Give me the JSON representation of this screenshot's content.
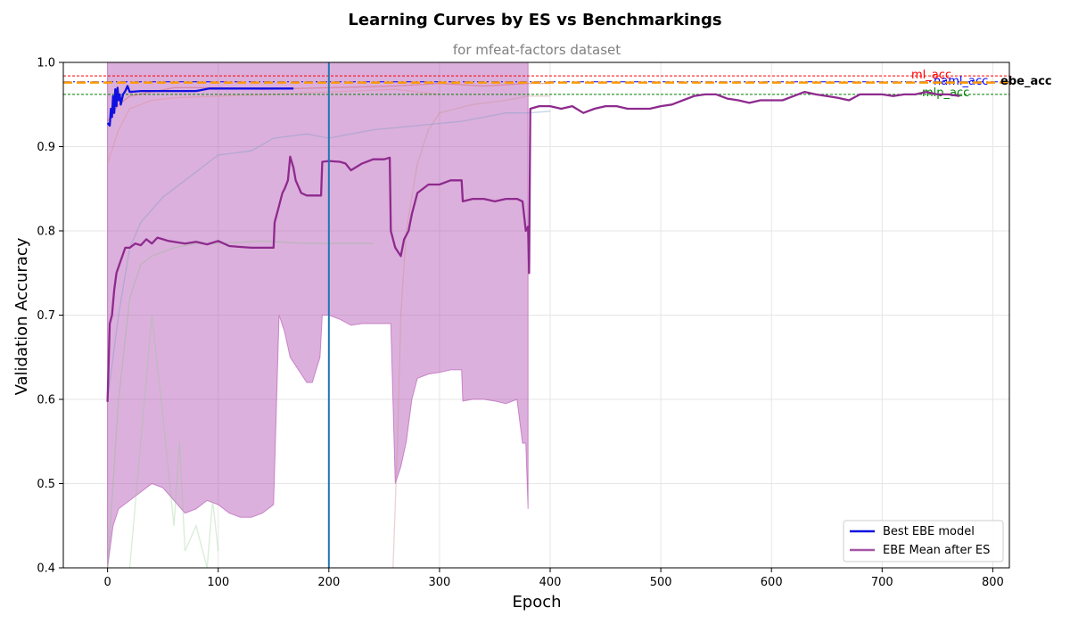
{
  "chart_data": {
    "type": "line",
    "title": "Learning Curves by ES vs Benchmarkings",
    "subtitle": "for mfeat-factors dataset",
    "xlabel": "Epoch",
    "ylabel": "Validation Accuracy",
    "xlim": [
      -40,
      815
    ],
    "ylim": [
      0.4,
      1.0
    ],
    "xticks": [
      0,
      100,
      200,
      300,
      400,
      500,
      600,
      700,
      800
    ],
    "yticks": [
      0.4,
      0.5,
      0.6,
      0.7,
      0.8,
      0.9,
      1.0
    ],
    "grid": true,
    "legend_position": "lower-right",
    "es_marker_epoch": 200,
    "es_marker_color": "#1f77b4",
    "reference_lines": [
      {
        "name": "ml_acc",
        "y": 0.984,
        "color": "#ff0000",
        "style": "dotted",
        "bold": false
      },
      {
        "name": "naml_acc",
        "y": 0.977,
        "color": "#0000ff",
        "style": "dashdot",
        "bold": false
      },
      {
        "name": "ebe_acc",
        "y": 0.976,
        "color": "#ff9900",
        "style": "dashed",
        "bold": true
      },
      {
        "name": "mlp_acc",
        "y": 0.962,
        "color": "#008000",
        "style": "dotted",
        "bold": false
      }
    ],
    "series": [
      {
        "name": "Best EBE model",
        "color": "#1010e0",
        "points": [
          [
            0,
            0.928
          ],
          [
            2,
            0.925
          ],
          [
            3,
            0.945
          ],
          [
            4,
            0.935
          ],
          [
            5,
            0.96
          ],
          [
            6,
            0.94
          ],
          [
            7,
            0.968
          ],
          [
            8,
            0.948
          ],
          [
            9,
            0.97
          ],
          [
            10,
            0.955
          ],
          [
            11,
            0.962
          ],
          [
            12,
            0.95
          ],
          [
            14,
            0.962
          ],
          [
            16,
            0.966
          ],
          [
            18,
            0.972
          ],
          [
            20,
            0.965
          ],
          [
            30,
            0.966
          ],
          [
            50,
            0.966
          ],
          [
            80,
            0.966
          ],
          [
            92,
            0.969
          ],
          [
            120,
            0.969
          ],
          [
            168,
            0.969
          ]
        ]
      },
      {
        "name": "EBE Mean after ES",
        "color": "#8e2a8e",
        "points": [
          [
            0,
            0.597
          ],
          [
            2,
            0.69
          ],
          [
            4,
            0.7
          ],
          [
            6,
            0.73
          ],
          [
            8,
            0.75
          ],
          [
            12,
            0.765
          ],
          [
            16,
            0.78
          ],
          [
            20,
            0.78
          ],
          [
            25,
            0.785
          ],
          [
            30,
            0.783
          ],
          [
            35,
            0.79
          ],
          [
            40,
            0.785
          ],
          [
            45,
            0.792
          ],
          [
            50,
            0.79
          ],
          [
            55,
            0.788
          ],
          [
            60,
            0.787
          ],
          [
            70,
            0.785
          ],
          [
            80,
            0.787
          ],
          [
            90,
            0.784
          ],
          [
            100,
            0.788
          ],
          [
            110,
            0.782
          ],
          [
            120,
            0.781
          ],
          [
            130,
            0.78
          ],
          [
            140,
            0.78
          ],
          [
            150,
            0.78
          ],
          [
            151,
            0.81
          ],
          [
            155,
            0.83
          ],
          [
            158,
            0.845
          ],
          [
            160,
            0.85
          ],
          [
            163,
            0.86
          ],
          [
            165,
            0.888
          ],
          [
            168,
            0.875
          ],
          [
            170,
            0.86
          ],
          [
            175,
            0.845
          ],
          [
            180,
            0.842
          ],
          [
            185,
            0.842
          ],
          [
            190,
            0.842
          ],
          [
            193,
            0.842
          ],
          [
            194,
            0.882
          ],
          [
            200,
            0.883
          ],
          [
            210,
            0.882
          ],
          [
            215,
            0.88
          ],
          [
            220,
            0.872
          ],
          [
            230,
            0.88
          ],
          [
            240,
            0.885
          ],
          [
            250,
            0.885
          ],
          [
            255,
            0.887
          ],
          [
            256,
            0.8
          ],
          [
            260,
            0.78
          ],
          [
            265,
            0.77
          ],
          [
            268,
            0.79
          ],
          [
            272,
            0.8
          ],
          [
            275,
            0.82
          ],
          [
            280,
            0.845
          ],
          [
            290,
            0.855
          ],
          [
            300,
            0.855
          ],
          [
            310,
            0.86
          ],
          [
            320,
            0.86
          ],
          [
            321,
            0.835
          ],
          [
            330,
            0.838
          ],
          [
            340,
            0.838
          ],
          [
            350,
            0.835
          ],
          [
            360,
            0.838
          ],
          [
            370,
            0.838
          ],
          [
            375,
            0.835
          ],
          [
            378,
            0.8
          ],
          [
            380,
            0.805
          ],
          [
            381,
            0.75
          ],
          [
            382,
            0.945
          ],
          [
            390,
            0.948
          ],
          [
            400,
            0.948
          ],
          [
            410,
            0.945
          ],
          [
            420,
            0.948
          ],
          [
            430,
            0.94
          ],
          [
            440,
            0.945
          ],
          [
            450,
            0.948
          ],
          [
            460,
            0.948
          ],
          [
            470,
            0.945
          ],
          [
            480,
            0.945
          ],
          [
            490,
            0.945
          ],
          [
            500,
            0.948
          ],
          [
            510,
            0.95
          ],
          [
            520,
            0.955
          ],
          [
            530,
            0.96
          ],
          [
            540,
            0.962
          ],
          [
            550,
            0.962
          ],
          [
            560,
            0.957
          ],
          [
            570,
            0.955
          ],
          [
            580,
            0.952
          ],
          [
            590,
            0.955
          ],
          [
            600,
            0.955
          ],
          [
            610,
            0.955
          ],
          [
            620,
            0.96
          ],
          [
            630,
            0.965
          ],
          [
            640,
            0.962
          ],
          [
            650,
            0.96
          ],
          [
            660,
            0.958
          ],
          [
            670,
            0.955
          ],
          [
            680,
            0.962
          ],
          [
            690,
            0.962
          ],
          [
            700,
            0.962
          ],
          [
            710,
            0.96
          ],
          [
            720,
            0.962
          ],
          [
            730,
            0.962
          ],
          [
            740,
            0.965
          ],
          [
            750,
            0.962
          ],
          [
            760,
            0.962
          ],
          [
            770,
            0.96
          ]
        ]
      }
    ],
    "confidence_band": {
      "color": "#b150b1",
      "upper": [
        [
          0,
          1.0
        ],
        [
          380,
          1.0
        ]
      ],
      "lower": [
        [
          0,
          0.4
        ],
        [
          5,
          0.45
        ],
        [
          10,
          0.47
        ],
        [
          20,
          0.48
        ],
        [
          30,
          0.49
        ],
        [
          40,
          0.5
        ],
        [
          50,
          0.495
        ],
        [
          60,
          0.48
        ],
        [
          70,
          0.465
        ],
        [
          80,
          0.47
        ],
        [
          90,
          0.48
        ],
        [
          100,
          0.475
        ],
        [
          110,
          0.465
        ],
        [
          120,
          0.46
        ],
        [
          130,
          0.46
        ],
        [
          140,
          0.465
        ],
        [
          150,
          0.475
        ],
        [
          155,
          0.7
        ],
        [
          160,
          0.68
        ],
        [
          165,
          0.65
        ],
        [
          170,
          0.64
        ],
        [
          175,
          0.63
        ],
        [
          180,
          0.62
        ],
        [
          185,
          0.62
        ],
        [
          192,
          0.65
        ],
        [
          194,
          0.7
        ],
        [
          200,
          0.7
        ],
        [
          210,
          0.695
        ],
        [
          220,
          0.688
        ],
        [
          230,
          0.69
        ],
        [
          240,
          0.69
        ],
        [
          250,
          0.69
        ],
        [
          256,
          0.69
        ],
        [
          260,
          0.5
        ],
        [
          265,
          0.52
        ],
        [
          270,
          0.55
        ],
        [
          275,
          0.6
        ],
        [
          280,
          0.625
        ],
        [
          290,
          0.63
        ],
        [
          300,
          0.632
        ],
        [
          310,
          0.635
        ],
        [
          320,
          0.635
        ],
        [
          321,
          0.598
        ],
        [
          330,
          0.6
        ],
        [
          340,
          0.6
        ],
        [
          350,
          0.598
        ],
        [
          360,
          0.595
        ],
        [
          370,
          0.6
        ],
        [
          375,
          0.548
        ],
        [
          378,
          0.548
        ],
        [
          380,
          0.47
        ]
      ]
    },
    "background_traces": [
      {
        "color": "#d06060",
        "opacity": 0.45,
        "points": [
          [
            0,
            0.93
          ],
          [
            10,
            0.95
          ],
          [
            20,
            0.96
          ],
          [
            40,
            0.965
          ],
          [
            60,
            0.97
          ],
          [
            100,
            0.97
          ],
          [
            140,
            0.968
          ],
          [
            200,
            0.97
          ],
          [
            260,
            0.972
          ],
          [
            300,
            0.975
          ],
          [
            340,
            0.972
          ],
          [
            380,
            0.975
          ],
          [
            400,
            0.975
          ]
        ]
      },
      {
        "color": "#e09090",
        "opacity": 0.45,
        "points": [
          [
            0,
            0.88
          ],
          [
            10,
            0.92
          ],
          [
            20,
            0.945
          ],
          [
            40,
            0.955
          ],
          [
            60,
            0.958
          ],
          [
            100,
            0.96
          ],
          [
            150,
            0.962
          ],
          [
            200,
            0.965
          ],
          [
            260,
            0.968
          ],
          [
            300,
            0.962
          ]
        ]
      },
      {
        "color": "#7fa0c8",
        "opacity": 0.45,
        "points": [
          [
            0,
            0.6
          ],
          [
            10,
            0.7
          ],
          [
            20,
            0.78
          ],
          [
            30,
            0.81
          ],
          [
            50,
            0.84
          ],
          [
            70,
            0.86
          ],
          [
            100,
            0.89
          ],
          [
            130,
            0.895
          ],
          [
            150,
            0.91
          ],
          [
            180,
            0.915
          ],
          [
            200,
            0.91
          ],
          [
            240,
            0.92
          ],
          [
            280,
            0.925
          ],
          [
            320,
            0.93
          ],
          [
            360,
            0.94
          ],
          [
            380,
            0.94
          ],
          [
            400,
            0.942
          ]
        ]
      },
      {
        "color": "#8fbc8f",
        "opacity": 0.4,
        "points": [
          [
            0,
            0.4
          ],
          [
            10,
            0.6
          ],
          [
            20,
            0.72
          ],
          [
            30,
            0.76
          ],
          [
            40,
            0.77
          ],
          [
            60,
            0.78
          ],
          [
            80,
            0.785
          ],
          [
            100,
            0.785
          ],
          [
            140,
            0.788
          ],
          [
            180,
            0.785
          ],
          [
            200,
            0.785
          ],
          [
            240,
            0.785
          ]
        ]
      },
      {
        "color": "#90c890",
        "opacity": 0.35,
        "points": [
          [
            20,
            0.4
          ],
          [
            30,
            0.55
          ],
          [
            40,
            0.7
          ],
          [
            50,
            0.58
          ],
          [
            60,
            0.45
          ],
          [
            65,
            0.55
          ],
          [
            70,
            0.42
          ],
          [
            80,
            0.45
          ],
          [
            90,
            0.4
          ],
          [
            95,
            0.48
          ],
          [
            100,
            0.42
          ]
        ]
      },
      {
        "color": "#c89090",
        "opacity": 0.4,
        "points": [
          [
            258,
            0.4
          ],
          [
            262,
            0.55
          ],
          [
            265,
            0.7
          ],
          [
            270,
            0.8
          ],
          [
            280,
            0.88
          ],
          [
            290,
            0.92
          ],
          [
            300,
            0.94
          ],
          [
            330,
            0.95
          ],
          [
            360,
            0.955
          ],
          [
            380,
            0.96
          ],
          [
            400,
            0.96
          ]
        ]
      }
    ]
  }
}
